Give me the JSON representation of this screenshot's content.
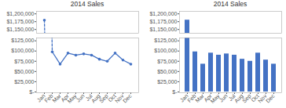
{
  "chart_data": [
    {
      "type": "line",
      "title": "2014 Sales",
      "categories": [
        "Jan",
        "Feb",
        "Mar",
        "Apr",
        "May",
        "Jun",
        "Jul",
        "Aug",
        "Sep",
        "Oct",
        "Nov",
        "Dec"
      ],
      "values": [
        1180000,
        null,
        null,
        null,
        null,
        null,
        null,
        null,
        null,
        null,
        null,
        null
      ],
      "color": "#4472C4",
      "marker": "o",
      "ylim": [
        1138000,
        1208000
      ],
      "yticks": [
        {
          "value": 1150000,
          "label": "$1,150,000"
        },
        {
          "value": 1175000,
          "label": "$1,175,000"
        },
        {
          "value": 1200000,
          "label": "$1,200,000"
        }
      ],
      "tick_labels": "y"
    },
    {
      "type": "line",
      "categories": [
        "Jan",
        "Feb",
        "Mar",
        "Apr",
        "May",
        "Jun",
        "Jul",
        "Aug",
        "Sep",
        "Oct",
        "Nov",
        "Dec"
      ],
      "values": [
        null,
        98000,
        68000,
        95000,
        90000,
        93000,
        90000,
        80000,
        75000,
        95000,
        78000,
        68000
      ],
      "color": "#4472C4",
      "marker": "o",
      "ylim": [
        -2000,
        132000
      ],
      "yticks": [
        {
          "value": 0,
          "label": "$-"
        },
        {
          "value": 25000,
          "label": "$25,000"
        },
        {
          "value": 50000,
          "label": "$50,000"
        },
        {
          "value": 75000,
          "label": "$75,000"
        },
        {
          "value": 100000,
          "label": "$100,000"
        },
        {
          "value": 125000,
          "label": "$125,000"
        }
      ]
    },
    {
      "type": "bar",
      "title": "2014 Sales",
      "categories": [
        "Jan",
        "Feb",
        "Mar",
        "Apr",
        "May",
        "Jun",
        "Jul",
        "Aug",
        "Sep",
        "Oct",
        "Nov",
        "Dec"
      ],
      "values": [
        1180000,
        null,
        null,
        null,
        null,
        null,
        null,
        null,
        null,
        null,
        null,
        null
      ],
      "color": "#4472C4",
      "ylim": [
        1138000,
        1208000
      ],
      "yticks": [
        {
          "value": 1150000,
          "label": "$1,150,000"
        },
        {
          "value": 1175000,
          "label": "$1,175,000"
        },
        {
          "value": 1200000,
          "label": "$1,200,000"
        }
      ],
      "tick_labels": "y"
    },
    {
      "type": "bar",
      "categories": [
        "Jan",
        "Feb",
        "Mar",
        "Apr",
        "May",
        "Jun",
        "Jul",
        "Aug",
        "Sep",
        "Oct",
        "Nov",
        "Dec"
      ],
      "values": [
        null,
        98000,
        68000,
        95000,
        90000,
        93000,
        90000,
        80000,
        75000,
        95000,
        78000,
        68000
      ],
      "color": "#4472C4",
      "ylim": [
        -2000,
        132000
      ],
      "yticks": [
        {
          "value": 0,
          "label": "$-"
        },
        {
          "value": 25000,
          "label": "$25,000"
        },
        {
          "value": 50000,
          "label": "$50,000"
        },
        {
          "value": 75000,
          "label": "$75,000"
        },
        {
          "value": 100000,
          "label": "$100,000"
        },
        {
          "value": 125000,
          "label": "$125,000"
        }
      ]
    }
  ]
}
